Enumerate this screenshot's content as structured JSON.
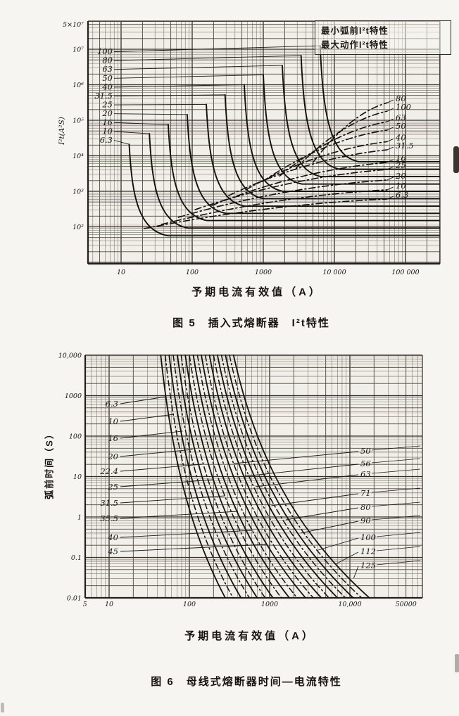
{
  "page": {
    "background": "#f6f5f1",
    "ink": "#1c1915"
  },
  "chart_data": [
    {
      "id": "figure5",
      "type": "line",
      "caption": "图 5　插入式熔断器　I²t特性",
      "xlabel": "予期电流有效值（A）",
      "ylabel": "I²t(A²S)",
      "x_scale": "log",
      "y_scale": "log",
      "xlim": [
        3.5,
        280000
      ],
      "ylim": [
        10,
        60000000
      ],
      "grid": true,
      "legend": {
        "position": "top-right",
        "items": [
          "最小弧前I²t特性",
          "最大动作I²t特性"
        ]
      },
      "x_ticks": [
        {
          "label": "10",
          "v": 10
        },
        {
          "label": "100",
          "v": 100
        },
        {
          "label": "1000",
          "v": 1000
        },
        {
          "label": "10 000",
          "v": 10000
        },
        {
          "label": "100 000",
          "v": 100000
        }
      ],
      "y_ticks": [
        {
          "label": "5×10⁷",
          "v": 50000000
        },
        {
          "label": "10⁷",
          "v": 10000000
        },
        {
          "label": "10⁶",
          "v": 1000000
        },
        {
          "label": "10⁵",
          "v": 100000
        },
        {
          "label": "10⁴",
          "v": 10000
        },
        {
          "label": "10³",
          "v": 1000
        },
        {
          "label": "10²",
          "v": 100
        }
      ],
      "max_operating_series": [
        {
          "name": "100",
          "knee": [
            6300,
            12500000
          ],
          "plateau_i2t": 6800
        },
        {
          "name": "80",
          "knee": [
            3400,
            6600000
          ],
          "plateau_i2t": 4200
        },
        {
          "name": "63",
          "knee": [
            1850,
            3500000
          ],
          "plateau_i2t": 2600
        },
        {
          "name": "50",
          "knee": [
            1000,
            1900000
          ],
          "plateau_i2t": 1600
        },
        {
          "name": "40",
          "knee": [
            540,
            1000000
          ],
          "plateau_i2t": 1000
        },
        {
          "name": "31.5",
          "knee": [
            290,
            520000
          ],
          "plateau_i2t": 620
        },
        {
          "name": "25",
          "knee": [
            158,
            280000
          ],
          "plateau_i2t": 380
        },
        {
          "name": "20",
          "knee": [
            85,
            145000
          ],
          "plateau_i2t": 240
        },
        {
          "name": "16",
          "knee": [
            46,
            76000
          ],
          "plateau_i2t": 150
        },
        {
          "name": "10",
          "knee": [
            25,
            42000
          ],
          "plateau_i2t": 92
        },
        {
          "name": "6.3",
          "knee": [
            13,
            21000
          ],
          "plateau_i2t": 56
        }
      ],
      "min_prearc_series": [
        {
          "name": "80",
          "start": [
            5000,
            6500
          ],
          "end": [
            55000,
            310000
          ]
        },
        {
          "name": "100",
          "start": [
            2900,
            4500
          ],
          "end": [
            55000,
            180000
          ]
        },
        {
          "name": "63",
          "start": [
            1700,
            2700
          ],
          "end": [
            55000,
            91000
          ]
        },
        {
          "name": "50",
          "start": [
            980,
            1890
          ],
          "end": [
            55000,
            53000
          ]
        },
        {
          "name": "40",
          "start": [
            565,
            1100
          ],
          "end": [
            55000,
            25000
          ]
        },
        {
          "name": "31.5",
          "start": [
            327,
            760
          ],
          "end": [
            55000,
            14700
          ]
        },
        {
          "name": "16",
          "start": [
            189,
            400
          ],
          "end": [
            55000,
            6500
          ]
        },
        {
          "name": "25",
          "start": [
            110,
            305
          ],
          "end": [
            55000,
            4100
          ]
        },
        {
          "name": "20",
          "start": [
            64,
            185
          ],
          "end": [
            55000,
            2075
          ]
        },
        {
          "name": "10",
          "start": [
            37,
            117
          ],
          "end": [
            55000,
            1100
          ]
        },
        {
          "name": "6.3",
          "start": [
            21,
            89
          ],
          "end": [
            55000,
            605
          ]
        }
      ]
    },
    {
      "id": "figure6",
      "type": "line",
      "caption": "图 6　母线式熔断器时间—电流特性",
      "xlabel": "予期电流有效值（A）",
      "ylabel": "弧前时间（S）",
      "x_scale": "log",
      "y_scale": "log",
      "xlim": [
        5,
        80000
      ],
      "ylim": [
        0.01,
        10000
      ],
      "grid": true,
      "x_ticks": [
        {
          "label": "5",
          "v": 5
        },
        {
          "label": "10",
          "v": 10
        },
        {
          "label": "100",
          "v": 100
        },
        {
          "label": "1000",
          "v": 1000
        },
        {
          "label": "10,000",
          "v": 10000
        },
        {
          "label": "50000",
          "v": 50000
        }
      ],
      "y_ticks": [
        {
          "label": "10,000",
          "v": 10000
        },
        {
          "label": "1000",
          "v": 1000
        },
        {
          "label": "100",
          "v": 100
        },
        {
          "label": "10",
          "v": 10
        },
        {
          "label": "1",
          "v": 1
        },
        {
          "label": "0.1",
          "v": 0.1
        },
        {
          "label": "0.01",
          "v": 0.01
        }
      ],
      "series": [
        {
          "name": "6.3",
          "label_side": "left",
          "i_at_10000s": 44,
          "i_at_0_01s": 280
        },
        {
          "name": "10",
          "label_side": "left",
          "i_at_10000s": 50,
          "i_at_0_01s": 350
        },
        {
          "name": "16",
          "label_side": "left",
          "i_at_10000s": 56,
          "i_at_0_01s": 440
        },
        {
          "name": "20",
          "label_side": "left",
          "i_at_10000s": 63,
          "i_at_0_01s": 560
        },
        {
          "name": "22.4",
          "label_side": "left",
          "i_at_10000s": 71,
          "i_at_0_01s": 700
        },
        {
          "name": "25",
          "label_side": "left",
          "i_at_10000s": 79,
          "i_at_0_01s": 880
        },
        {
          "name": "31.5",
          "label_side": "left",
          "i_at_10000s": 89,
          "i_at_0_01s": 1100
        },
        {
          "name": "35.5",
          "label_side": "left",
          "i_at_10000s": 100,
          "i_at_0_01s": 1400
        },
        {
          "name": "40",
          "label_side": "left",
          "i_at_10000s": 112,
          "i_at_0_01s": 1760
        },
        {
          "name": "45",
          "label_side": "left",
          "i_at_10000s": 126,
          "i_at_0_01s": 2200
        },
        {
          "name": "50",
          "label_side": "right",
          "i_at_10000s": 141,
          "i_at_0_01s": 2800
        },
        {
          "name": "56",
          "label_side": "right",
          "i_at_10000s": 158,
          "i_at_0_01s": 3500
        },
        {
          "name": "63",
          "label_side": "right",
          "i_at_10000s": 178,
          "i_at_0_01s": 4400
        },
        {
          "name": "71",
          "label_side": "right",
          "i_at_10000s": 200,
          "i_at_0_01s": 5500
        },
        {
          "name": "80",
          "label_side": "right",
          "i_at_10000s": 224,
          "i_at_0_01s": 7000
        },
        {
          "name": "90",
          "label_side": "right",
          "i_at_10000s": 251,
          "i_at_0_01s": 8800
        },
        {
          "name": "100",
          "label_side": "right",
          "i_at_10000s": 282,
          "i_at_0_01s": 11000
        },
        {
          "name": "112",
          "label_side": "right",
          "i_at_10000s": 316,
          "i_at_0_01s": 14000
        },
        {
          "name": "125",
          "label_side": "right",
          "i_at_10000s": 355,
          "i_at_0_01s": 17500
        }
      ]
    }
  ]
}
